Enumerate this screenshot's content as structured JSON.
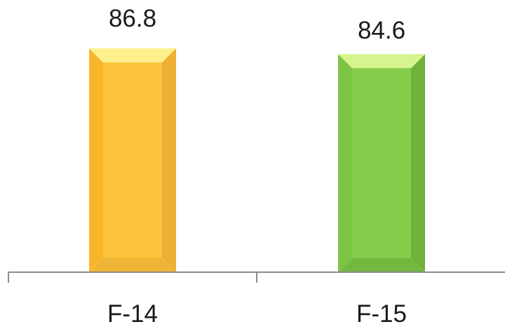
{
  "chart_data": {
    "type": "bar",
    "categories": [
      "F-14",
      "F-15"
    ],
    "values": [
      86.8,
      84.6
    ],
    "data_labels": [
      "86.8",
      "84.6"
    ],
    "title": "",
    "xlabel": "",
    "ylabel": "",
    "ylim": [
      0,
      86.8
    ],
    "grid": false,
    "legend": "none",
    "colors": [
      {
        "face": "#FCC43C",
        "left": "#F7B52A",
        "right": "#EEB032",
        "top": "#FEF08A",
        "bottom": "#F0B536"
      },
      {
        "face": "#86CD4C",
        "left": "#7DC444",
        "right": "#6FB13B",
        "top": "#D6F58F",
        "bottom": "#72B83F"
      }
    ],
    "axis_color": "#8C8C8C"
  }
}
